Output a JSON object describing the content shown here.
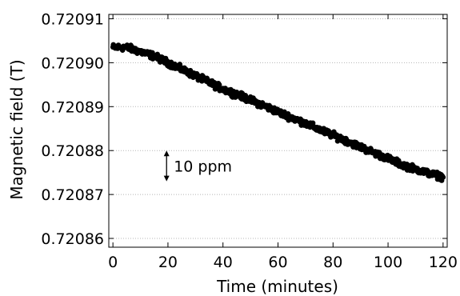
{
  "chart_data": {
    "type": "scatter",
    "title": "",
    "xlabel": "Time (minutes)",
    "ylabel": "Magnetic field (T)",
    "xlim": [
      -1.5,
      121.5
    ],
    "ylim": [
      0.720858,
      0.720911
    ],
    "xticks": [
      0,
      20,
      40,
      60,
      80,
      100,
      120
    ],
    "xtick_labels": [
      "0",
      "20",
      "40",
      "60",
      "80",
      "100",
      "120"
    ],
    "yticks": [
      0.72086,
      0.72087,
      0.72088,
      0.72089,
      0.7209,
      0.72091
    ],
    "ytick_labels": [
      "0.72086",
      "0.72087",
      "0.72088",
      "0.72089",
      "0.72090",
      "0.72091"
    ],
    "grid": "horizontal dotted",
    "marker_color": "#000000",
    "annotation": {
      "label": "10 ppm",
      "x": 19.5,
      "y_from": 0.720873,
      "y_to": 0.72088
    },
    "series": [
      {
        "x": [
          0,
          5,
          10,
          15,
          20,
          25,
          30,
          35,
          40,
          45,
          50,
          55,
          60,
          65,
          70,
          75,
          80,
          85,
          90,
          95,
          100,
          105,
          110,
          115,
          120
        ],
        "y": [
          0.7209035,
          0.7209035,
          0.7209025,
          0.7209015,
          0.7209,
          0.7208985,
          0.720897,
          0.7208955,
          0.720894,
          0.7208928,
          0.7208915,
          0.7208902,
          0.7208888,
          0.7208875,
          0.7208862,
          0.7208848,
          0.7208835,
          0.7208822,
          0.7208808,
          0.7208795,
          0.7208782,
          0.7208768,
          0.7208758,
          0.7208748,
          0.720874
        ],
        "spread": 8e-07
      }
    ]
  }
}
